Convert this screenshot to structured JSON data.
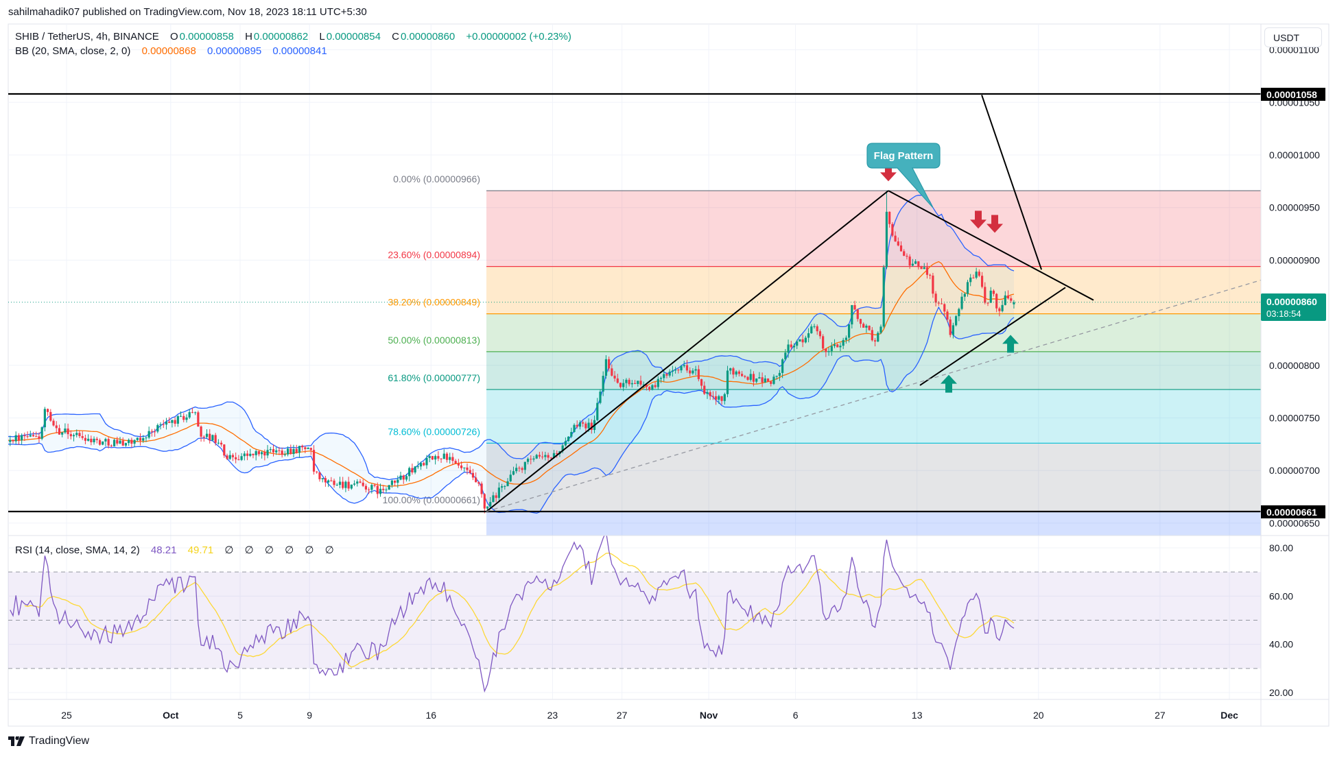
{
  "header": {
    "published": "sahilmahadik07 published on TradingView.com, Nov 18, 2023 18:11 UTC+5:30"
  },
  "legend": {
    "symbol": "SHIB / TetherUS, 4h, BINANCE",
    "o_label": "O",
    "o": "0.00000858",
    "h_label": "H",
    "h": "0.00000862",
    "l_label": "L",
    "l": "0.00000854",
    "c_label": "C",
    "c": "0.00000860",
    "change": "+0.00000002 (+0.23%)"
  },
  "bb": {
    "label": "BB (20, SMA, close, 2, 0)",
    "basis": "0.00000868",
    "upper": "0.00000895",
    "lower": "0.00000841"
  },
  "rsi": {
    "label": "RSI (14, close, SMA, 14, 2)",
    "value": "48.21",
    "sma": "49.71",
    "placeholders": [
      "∅",
      "∅",
      "∅",
      "∅",
      "∅",
      "∅"
    ]
  },
  "price_axis": {
    "currency": "USDT",
    "ticks": [
      {
        "price": 1100,
        "label": "0.00001100"
      },
      {
        "price": 1050,
        "label": "0.00001050"
      },
      {
        "price": 1000,
        "label": "0.00001000"
      },
      {
        "price": 950,
        "label": "0.00000950"
      },
      {
        "price": 900,
        "label": "0.00000900"
      },
      {
        "price": 800,
        "label": "0.00000800"
      },
      {
        "price": 750,
        "label": "0.00000750"
      },
      {
        "price": 700,
        "label": "0.00000700"
      },
      {
        "price": 650,
        "label": "0.00000650"
      }
    ],
    "last_price": "0.00000860",
    "countdown": "03:18:54",
    "level_high": "0.00001058",
    "level_low": "0.00000661"
  },
  "rsi_axis": {
    "ticks": [
      {
        "v": 80,
        "label": "80.00"
      },
      {
        "v": 60,
        "label": "60.00"
      },
      {
        "v": 40,
        "label": "40.00"
      },
      {
        "v": 20,
        "label": "20.00"
      }
    ]
  },
  "time_axis": [
    {
      "label": "25",
      "day": 0,
      "bold": false
    },
    {
      "label": "Oct",
      "day": 6,
      "bold": true
    },
    {
      "label": "5",
      "day": 10,
      "bold": false
    },
    {
      "label": "9",
      "day": 14,
      "bold": false
    },
    {
      "label": "16",
      "day": 21,
      "bold": false
    },
    {
      "label": "23",
      "day": 28,
      "bold": false
    },
    {
      "label": "27",
      "day": 32,
      "bold": false
    },
    {
      "label": "Nov",
      "day": 37,
      "bold": true
    },
    {
      "label": "6",
      "day": 42,
      "bold": false
    },
    {
      "label": "13",
      "day": 49,
      "bold": false
    },
    {
      "label": "20",
      "day": 56,
      "bold": false
    },
    {
      "label": "27",
      "day": 63,
      "bold": false
    },
    {
      "label": "Dec",
      "day": 67,
      "bold": true
    }
  ],
  "fib": {
    "levels": [
      {
        "ratio": 0,
        "price": 966,
        "label": "0.00% (0.00000966)",
        "color": "#787b86",
        "fill": "rgba(242,54,69,0.2)"
      },
      {
        "ratio": 0.236,
        "price": 894,
        "label": "23.60% (0.00000894)",
        "color": "#f23645",
        "fill": "rgba(255,152,0,0.2)"
      },
      {
        "ratio": 0.382,
        "price": 849,
        "label": "38.20% (0.00000849)",
        "color": "#ff9800",
        "fill": "rgba(76,175,80,0.2)"
      },
      {
        "ratio": 0.5,
        "price": 813,
        "label": "50.00% (0.00000813)",
        "color": "#4caf50",
        "fill": "rgba(8,153,129,0.2)"
      },
      {
        "ratio": 0.618,
        "price": 777,
        "label": "61.80% (0.00000777)",
        "color": "#089981",
        "fill": "rgba(0,188,212,0.2)"
      },
      {
        "ratio": 0.786,
        "price": 726,
        "label": "78.60% (0.00000726)",
        "color": "#00bcd4",
        "fill": "rgba(120,123,134,0.2)"
      },
      {
        "ratio": 1,
        "price": 661,
        "label": "100.00% (0.00000661)",
        "color": "#787b86",
        "fill": "rgba(41,98,255,0.2)"
      }
    ],
    "start_day": 24.19
  },
  "annotations": {
    "flag_label": "Flag Pattern"
  },
  "footer": {
    "brand": "TradingView"
  },
  "colors": {
    "up": "#089981",
    "down": "#f23645",
    "bb_basis": "#ff6d00",
    "bb_band": "#2962ff",
    "rsi": "#7e57c2",
    "rsi_ma": "#fdd835",
    "last": "#089981",
    "callout": "#45b1bd",
    "arrow_down": "#d32f3f",
    "arrow_up": "#089981"
  },
  "chart_data": {
    "type": "candlestick",
    "title": "SHIB / TetherUS, 4h, BINANCE",
    "price_unit": "1e-8 USDT",
    "x_unit": "days since Sep 25, 2023",
    "xlim": [
      -3.4,
      68.8
    ],
    "ylim": [
      633,
      1100
    ],
    "price_path": [
      [
        -7,
        728
      ],
      [
        -3.36,
        730
      ],
      [
        -1.46,
        732
      ],
      [
        -1.11,
        760
      ],
      [
        -0.75,
        740
      ],
      [
        2.13,
        727
      ],
      [
        4.15,
        727
      ],
      [
        5.26,
        741
      ],
      [
        7.04,
        752
      ],
      [
        7.43,
        758
      ],
      [
        7.79,
        735
      ],
      [
        8.85,
        728
      ],
      [
        9.25,
        712
      ],
      [
        14.11,
        722
      ],
      [
        14.31,
        700
      ],
      [
        14.66,
        690
      ],
      [
        17.11,
        685
      ],
      [
        18.3,
        680
      ],
      [
        19.09,
        690
      ],
      [
        20.67,
        708
      ],
      [
        21.86,
        715
      ],
      [
        22.45,
        705
      ],
      [
        23.04,
        700
      ],
      [
        23.83,
        685
      ],
      [
        24.19,
        662
      ],
      [
        24.78,
        675
      ],
      [
        25.69,
        696
      ],
      [
        26.96,
        711
      ],
      [
        27.91,
        712
      ],
      [
        28.81,
        724
      ],
      [
        29.6,
        748
      ],
      [
        30.4,
        740
      ],
      [
        31.19,
        806
      ],
      [
        31.82,
        780
      ],
      [
        32.73,
        786
      ],
      [
        33.83,
        778
      ],
      [
        35.1,
        800
      ],
      [
        36.32,
        795
      ],
      [
        36.8,
        772
      ],
      [
        37.59,
        768
      ],
      [
        37.91,
        763
      ],
      [
        38.22,
        797
      ],
      [
        39.45,
        789
      ],
      [
        40.71,
        784
      ],
      [
        41.19,
        795
      ],
      [
        41.66,
        819
      ],
      [
        42.57,
        822
      ],
      [
        43.04,
        842
      ],
      [
        43.83,
        812
      ],
      [
        44.39,
        818
      ],
      [
        45.06,
        828
      ],
      [
        45.3,
        856
      ],
      [
        45.69,
        845
      ],
      [
        46.76,
        822
      ],
      [
        47.08,
        846
      ],
      [
        47.27,
        947
      ],
      [
        47.43,
        937
      ],
      [
        47.94,
        915
      ],
      [
        48.46,
        900
      ],
      [
        49.8,
        888
      ],
      [
        50.2,
        856
      ],
      [
        50.59,
        860
      ],
      [
        50.99,
        832
      ],
      [
        51.62,
        862
      ],
      [
        52.57,
        895
      ],
      [
        53.08,
        855
      ],
      [
        53.4,
        880
      ],
      [
        53.75,
        850
      ],
      [
        54.15,
        868
      ],
      [
        54.58,
        860
      ]
    ],
    "extremes": {
      "high": {
        "day": 47.27,
        "price": 966
      },
      "low": {
        "day": 24.19,
        "price": 661
      }
    },
    "last_bar": {
      "o": 858,
      "h": 862,
      "l": 854,
      "c": 860
    },
    "horizontal_levels": [
      1058,
      661
    ],
    "trendlines": [
      {
        "name": "rally-line",
        "from": [
          24.19,
          661
        ],
        "to": [
          47.35,
          966
        ],
        "dashed": false
      },
      {
        "name": "flag-upper-line",
        "from": [
          47.35,
          966
        ],
        "to": [
          59.17,
          862
        ],
        "dashed": false
      },
      {
        "name": "flag-lower-line",
        "from": [
          49.17,
          781
        ],
        "to": [
          57.55,
          874
        ],
        "dashed": false
      },
      {
        "name": "steep-line",
        "from": [
          52.73,
          1057
        ],
        "to": [
          56.17,
          891
        ],
        "dashed": false
      },
      {
        "name": "support-dashed-line",
        "from": [
          24.19,
          661
        ],
        "to": [
          68.81,
          881
        ],
        "dashed": true
      }
    ],
    "arrows": [
      {
        "dir": "down",
        "day": 47.35,
        "price": 975
      },
      {
        "dir": "down",
        "day": 52.53,
        "price": 930
      },
      {
        "dir": "down",
        "day": 53.48,
        "price": 926
      },
      {
        "dir": "up",
        "day": 50.83,
        "price": 791
      },
      {
        "dir": "up",
        "day": 54.39,
        "price": 829
      }
    ],
    "indicators": {
      "bb": {
        "length": 20,
        "mult": 2
      },
      "rsi": {
        "length": 14,
        "ma_length": 14,
        "upper": 70,
        "mid": 50,
        "lower": 30
      }
    },
    "last_price": 860
  }
}
